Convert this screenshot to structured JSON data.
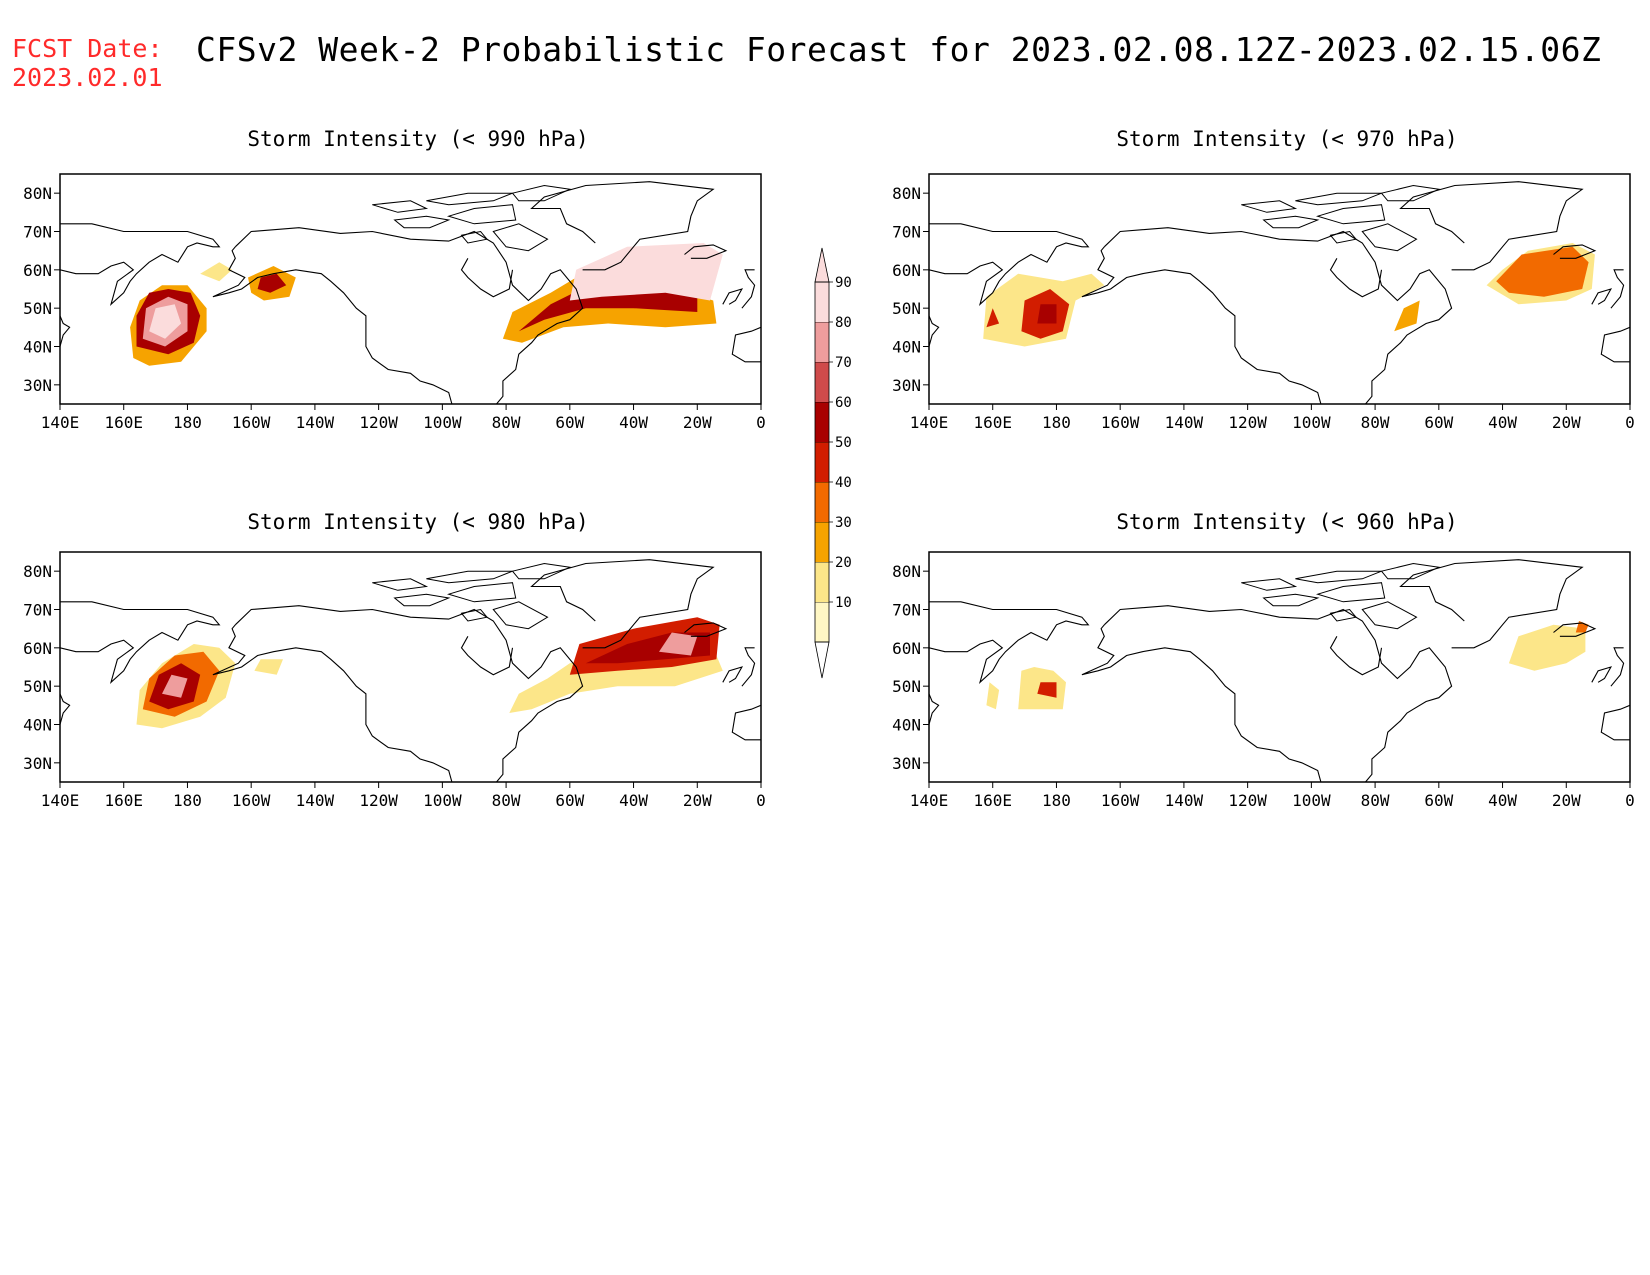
{
  "header": {
    "fcst_label": "FCST Date:",
    "fcst_date": "2023.02.01",
    "title": "CFSv2 Week-2 Probabilistic Forecast for 2023.02.08.12Z-2023.02.15.06Z"
  },
  "map": {
    "lon_range": [
      140,
      360
    ],
    "lat_range": [
      25,
      85
    ],
    "x_ticks": [
      {
        "lon": 140,
        "label": "140E"
      },
      {
        "lon": 160,
        "label": "160E"
      },
      {
        "lon": 180,
        "label": "180"
      },
      {
        "lon": 200,
        "label": "160W"
      },
      {
        "lon": 220,
        "label": "140W"
      },
      {
        "lon": 240,
        "label": "120W"
      },
      {
        "lon": 260,
        "label": "100W"
      },
      {
        "lon": 280,
        "label": "80W"
      },
      {
        "lon": 300,
        "label": "60W"
      },
      {
        "lon": 320,
        "label": "40W"
      },
      {
        "lon": 340,
        "label": "20W"
      },
      {
        "lon": 360,
        "label": "0"
      }
    ],
    "y_ticks": [
      {
        "lat": 30,
        "label": "30N"
      },
      {
        "lat": 40,
        "label": "40N"
      },
      {
        "lat": 50,
        "label": "50N"
      },
      {
        "lat": 60,
        "label": "60N"
      },
      {
        "lat": 70,
        "label": "70N"
      },
      {
        "lat": 80,
        "label": "80N"
      }
    ]
  },
  "colorbar": {
    "levels": [
      {
        "label": "10",
        "color": "#fff7c4"
      },
      {
        "label": "20",
        "color": "#fce689"
      },
      {
        "label": "30",
        "color": "#f6a300"
      },
      {
        "label": "40",
        "color": "#f26a00"
      },
      {
        "label": "50",
        "color": "#d21d00"
      },
      {
        "label": "60",
        "color": "#a80000"
      },
      {
        "label": "70",
        "color": "#cf4b4b"
      },
      {
        "label": "80",
        "color": "#ee9d9d"
      },
      {
        "label": "90",
        "color": "#fbdcdc"
      }
    ]
  },
  "panels": [
    {
      "id": "990",
      "title": "Storm Intensity (< 990 hPa)",
      "regions": [
        {
          "prob": 30,
          "poly": [
            [
              163,
              37
            ],
            [
              162,
              45
            ],
            [
              165,
              52
            ],
            [
              172,
              56
            ],
            [
              180,
              56
            ],
            [
              186,
              50
            ],
            [
              186,
              44
            ],
            [
              178,
              36
            ],
            [
              168,
              35
            ]
          ]
        },
        {
          "prob": 60,
          "poly": [
            [
              164,
              40
            ],
            [
              164,
              48
            ],
            [
              168,
              54
            ],
            [
              174,
              55
            ],
            [
              181,
              54
            ],
            [
              184,
              48
            ],
            [
              182,
              41
            ],
            [
              174,
              38
            ]
          ]
        },
        {
          "prob": 80,
          "poly": [
            [
              166,
              42
            ],
            [
              167,
              50
            ],
            [
              174,
              53
            ],
            [
              180,
              51
            ],
            [
              180,
              44
            ],
            [
              173,
              40
            ]
          ]
        },
        {
          "prob": 90,
          "poly": [
            [
              168,
              44
            ],
            [
              170,
              50
            ],
            [
              176,
              51
            ],
            [
              178,
              46
            ],
            [
              173,
              42
            ]
          ]
        },
        {
          "prob": 30,
          "poly": [
            [
              200,
              54
            ],
            [
              199,
              58
            ],
            [
              207,
              61
            ],
            [
              214,
              58
            ],
            [
              212,
              53
            ],
            [
              204,
              52
            ]
          ]
        },
        {
          "prob": 60,
          "poly": [
            [
              202,
              55
            ],
            [
              203,
              58
            ],
            [
              208,
              59
            ],
            [
              211,
              56
            ],
            [
              206,
              54
            ]
          ]
        },
        {
          "prob": 20,
          "poly": [
            [
              184,
              59
            ],
            [
              190,
              62
            ],
            [
              194,
              60
            ],
            [
              190,
              57
            ]
          ]
        },
        {
          "prob": 30,
          "poly": [
            [
              279,
              42
            ],
            [
              282,
              49
            ],
            [
              294,
              54
            ],
            [
              302,
              58
            ],
            [
              315,
              58
            ],
            [
              330,
              56
            ],
            [
              345,
              52
            ],
            [
              346,
              46
            ],
            [
              330,
              45
            ],
            [
              312,
              46
            ],
            [
              298,
              45
            ],
            [
              285,
              41
            ]
          ]
        },
        {
          "prob": 60,
          "poly": [
            [
              284,
              44
            ],
            [
              294,
              51
            ],
            [
              306,
              56
            ],
            [
              322,
              56
            ],
            [
              340,
              53
            ],
            [
              340,
              49
            ],
            [
              320,
              50
            ],
            [
              305,
              50
            ],
            [
              292,
              47
            ]
          ]
        },
        {
          "prob": 90,
          "poly": [
            [
              300,
              52
            ],
            [
              302,
              60
            ],
            [
              318,
              66
            ],
            [
              342,
              67
            ],
            [
              348,
              64
            ],
            [
              344,
              52
            ],
            [
              330,
              54
            ],
            [
              310,
              53
            ]
          ]
        }
      ]
    },
    {
      "id": "970",
      "title": "Storm Intensity (< 970 hPa)",
      "regions": [
        {
          "prob": 20,
          "poly": [
            [
              157,
              42
            ],
            [
              158,
              53
            ],
            [
              168,
              59
            ],
            [
              182,
              57
            ],
            [
              191,
              59
            ],
            [
              195,
              56
            ],
            [
              186,
              52
            ],
            [
              183,
              42
            ],
            [
              170,
              40
            ]
          ]
        },
        {
          "prob": 50,
          "poly": [
            [
              169,
              44
            ],
            [
              170,
              52
            ],
            [
              178,
              55
            ],
            [
              184,
              51
            ],
            [
              182,
              44
            ],
            [
              175,
              42
            ]
          ]
        },
        {
          "prob": 60,
          "poly": [
            [
              174,
              46
            ],
            [
              175,
              51
            ],
            [
              180,
              51
            ],
            [
              180,
              46
            ]
          ]
        },
        {
          "prob": 50,
          "poly": [
            [
              158,
              45
            ],
            [
              160,
              50
            ],
            [
              162,
              46
            ]
          ]
        },
        {
          "prob": 30,
          "poly": [
            [
              286,
              44
            ],
            [
              289,
              50
            ],
            [
              294,
              52
            ],
            [
              293,
              46
            ]
          ]
        },
        {
          "prob": 20,
          "poly": [
            [
              315,
              56
            ],
            [
              320,
              60
            ],
            [
              328,
              65
            ],
            [
              342,
              67
            ],
            [
              349,
              64
            ],
            [
              348,
              55
            ],
            [
              340,
              52
            ],
            [
              325,
              51
            ]
          ]
        },
        {
          "prob": 40,
          "poly": [
            [
              318,
              57
            ],
            [
              326,
              64
            ],
            [
              342,
              66
            ],
            [
              347,
              62
            ],
            [
              345,
              55
            ],
            [
              333,
              53
            ],
            [
              322,
              54
            ]
          ]
        }
      ]
    },
    {
      "id": "980",
      "title": "Storm Intensity (< 980 hPa)",
      "regions": [
        {
          "prob": 20,
          "poly": [
            [
              164,
              40
            ],
            [
              165,
              49
            ],
            [
              172,
              56
            ],
            [
              182,
              61
            ],
            [
              190,
              60
            ],
            [
              195,
              56
            ],
            [
              192,
              47
            ],
            [
              184,
              42
            ],
            [
              172,
              39
            ]
          ]
        },
        {
          "prob": 40,
          "poly": [
            [
              166,
              44
            ],
            [
              168,
              52
            ],
            [
              176,
              58
            ],
            [
              185,
              59
            ],
            [
              190,
              54
            ],
            [
              186,
              46
            ],
            [
              176,
              42
            ]
          ]
        },
        {
          "prob": 60,
          "poly": [
            [
              168,
              46
            ],
            [
              171,
              53
            ],
            [
              178,
              56
            ],
            [
              184,
              53
            ],
            [
              182,
              46
            ],
            [
              174,
              44
            ]
          ]
        },
        {
          "prob": 80,
          "poly": [
            [
              172,
              48
            ],
            [
              175,
              53
            ],
            [
              180,
              52
            ],
            [
              178,
              47
            ]
          ]
        },
        {
          "prob": 20,
          "poly": [
            [
              201,
              54
            ],
            [
              203,
              57
            ],
            [
              210,
              57
            ],
            [
              208,
              53
            ]
          ]
        },
        {
          "prob": 20,
          "poly": [
            [
              281,
              43
            ],
            [
              284,
              48
            ],
            [
              293,
              52
            ],
            [
              300,
              56
            ],
            [
              315,
              58
            ],
            [
              332,
              60
            ],
            [
              345,
              60
            ],
            [
              348,
              54
            ],
            [
              333,
              50
            ],
            [
              315,
              50
            ],
            [
              300,
              48
            ],
            [
              288,
              44
            ]
          ]
        },
        {
          "prob": 50,
          "poly": [
            [
              300,
              53
            ],
            [
              303,
              61
            ],
            [
              320,
              65
            ],
            [
              340,
              68
            ],
            [
              347,
              66
            ],
            [
              346,
              57
            ],
            [
              332,
              55
            ],
            [
              315,
              54
            ]
          ]
        },
        {
          "prob": 60,
          "poly": [
            [
              305,
              56
            ],
            [
              318,
              61
            ],
            [
              332,
              64
            ],
            [
              344,
              64
            ],
            [
              344,
              58
            ],
            [
              330,
              57
            ],
            [
              315,
              56
            ]
          ]
        },
        {
          "prob": 80,
          "poly": [
            [
              328,
              59
            ],
            [
              332,
              64
            ],
            [
              340,
              63
            ],
            [
              338,
              58
            ]
          ]
        }
      ]
    },
    {
      "id": "960",
      "title": "Storm Intensity (< 960 hPa)",
      "regions": [
        {
          "prob": 20,
          "poly": [
            [
              158,
              45
            ],
            [
              159,
              51
            ],
            [
              162,
              49
            ],
            [
              161,
              44
            ]
          ]
        },
        {
          "prob": 20,
          "poly": [
            [
              168,
              44
            ],
            [
              169,
              54
            ],
            [
              173,
              55
            ],
            [
              179,
              54
            ],
            [
              183,
              51
            ],
            [
              182,
              44
            ],
            [
              175,
              44
            ]
          ]
        },
        {
          "prob": 50,
          "poly": [
            [
              174,
              48
            ],
            [
              175,
              51
            ],
            [
              180,
              51
            ],
            [
              180,
              47
            ]
          ]
        },
        {
          "prob": 20,
          "poly": [
            [
              322,
              56
            ],
            [
              325,
              63
            ],
            [
              336,
              66
            ],
            [
              346,
              65
            ],
            [
              346,
              59
            ],
            [
              340,
              56
            ],
            [
              330,
              54
            ]
          ]
        },
        {
          "prob": 40,
          "poly": [
            [
              343,
              64
            ],
            [
              344,
              67
            ],
            [
              347,
              66
            ],
            [
              346,
              64
            ]
          ]
        }
      ]
    }
  ]
}
